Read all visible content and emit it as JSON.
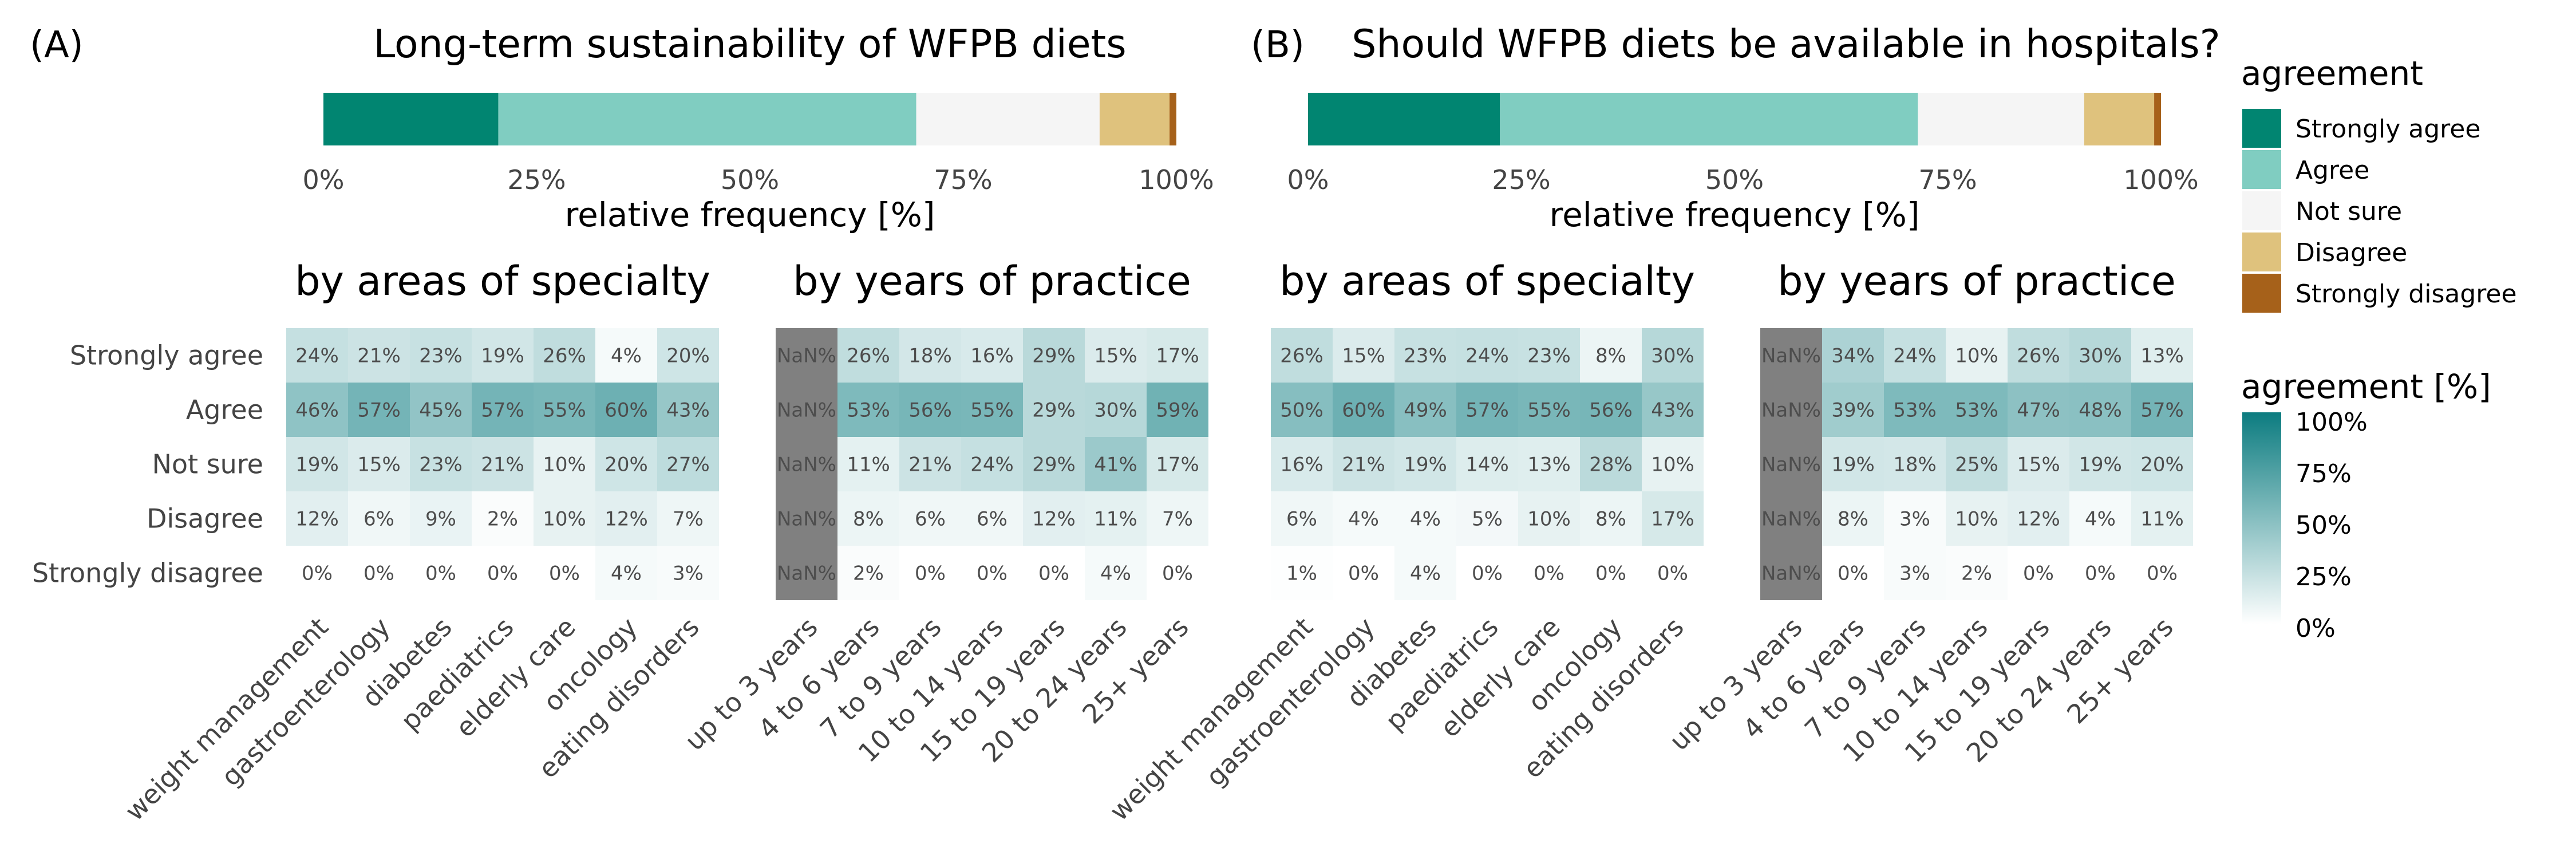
{
  "chart_data": {
    "type": "heatmap",
    "response_levels": [
      "Strongly agree",
      "Agree",
      "Not sure",
      "Disagree",
      "Strongly disagree"
    ],
    "legends": {
      "agreement": {
        "title": "agreement",
        "items": [
          {
            "label": "Strongly agree",
            "color": "#018571"
          },
          {
            "label": "Agree",
            "color": "#80cdc1"
          },
          {
            "label": "Not sure",
            "color": "#f5f5f5"
          },
          {
            "label": "Disagree",
            "color": "#dfc27d"
          },
          {
            "label": "Strongly disagree",
            "color": "#a6611a"
          }
        ]
      },
      "colorbar": {
        "title": "agreement [%]",
        "ticks": [
          "100%",
          "75%",
          "50%",
          "25%",
          "0%"
        ],
        "low_color": "#ffffff",
        "high_color": "#0c7c80",
        "na_color": "#808080"
      }
    },
    "panels": [
      {
        "letter": "(A)",
        "title": "Long-term sustainability of WFPB diets",
        "overall": {
          "xlabel": "relative frequency [%]",
          "ticks": [
            "0%",
            "25%",
            "50%",
            "75%",
            "100%"
          ],
          "segments": [
            20.5,
            49.0,
            21.5,
            8.2,
            0.8
          ]
        },
        "by_specialty": {
          "title": "by areas of specialty",
          "categories": [
            "weight management",
            "gastroenterology",
            "diabetes",
            "paediatrics",
            "elderly care",
            "oncology",
            "eating disorders"
          ],
          "values": [
            [
              24,
              21,
              23,
              19,
              26,
              4,
              20
            ],
            [
              46,
              57,
              45,
              57,
              55,
              60,
              43
            ],
            [
              19,
              15,
              23,
              21,
              10,
              20,
              27
            ],
            [
              12,
              6,
              9,
              2,
              10,
              12,
              7
            ],
            [
              0,
              0,
              0,
              0,
              0,
              4,
              3
            ]
          ]
        },
        "by_years": {
          "title": "by years of practice",
          "categories": [
            "up to 3 years",
            "4 to 6 years",
            "7 to 9 years",
            "10 to 14 years",
            "15 to 19 years",
            "20 to 24 years",
            "25+ years"
          ],
          "values": [
            [
              null,
              26,
              18,
              16,
              29,
              15,
              17
            ],
            [
              null,
              53,
              56,
              55,
              29,
              30,
              59
            ],
            [
              null,
              11,
              21,
              24,
              29,
              41,
              17
            ],
            [
              null,
              8,
              6,
              6,
              12,
              11,
              7
            ],
            [
              null,
              2,
              0,
              0,
              0,
              4,
              0
            ]
          ]
        }
      },
      {
        "letter": "(B)",
        "title": "Should WFPB diets be available in hospitals?",
        "overall": {
          "xlabel": "relative frequency [%]",
          "ticks": [
            "0%",
            "25%",
            "50%",
            "75%",
            "100%"
          ],
          "segments": [
            22.5,
            49.0,
            19.5,
            8.2,
            0.8
          ]
        },
        "by_specialty": {
          "title": "by areas of specialty",
          "categories": [
            "weight management",
            "gastroenterology",
            "diabetes",
            "paediatrics",
            "elderly care",
            "oncology",
            "eating disorders"
          ],
          "values": [
            [
              26,
              15,
              23,
              24,
              23,
              8,
              30
            ],
            [
              50,
              60,
              49,
              57,
              55,
              56,
              43
            ],
            [
              16,
              21,
              19,
              14,
              13,
              28,
              10
            ],
            [
              6,
              4,
              4,
              5,
              10,
              8,
              17
            ],
            [
              1,
              0,
              4,
              0,
              0,
              0,
              0
            ]
          ]
        },
        "by_years": {
          "title": "by years of practice",
          "categories": [
            "up to 3 years",
            "4 to 6 years",
            "7 to 9 years",
            "10 to 14 years",
            "15 to 19 years",
            "20 to 24 years",
            "25+ years"
          ],
          "values": [
            [
              null,
              34,
              24,
              10,
              26,
              30,
              13
            ],
            [
              null,
              39,
              53,
              53,
              47,
              48,
              57
            ],
            [
              null,
              19,
              18,
              25,
              15,
              19,
              20
            ],
            [
              null,
              8,
              3,
              10,
              12,
              4,
              11
            ],
            [
              null,
              0,
              3,
              2,
              0,
              0,
              0
            ]
          ]
        }
      }
    ]
  }
}
